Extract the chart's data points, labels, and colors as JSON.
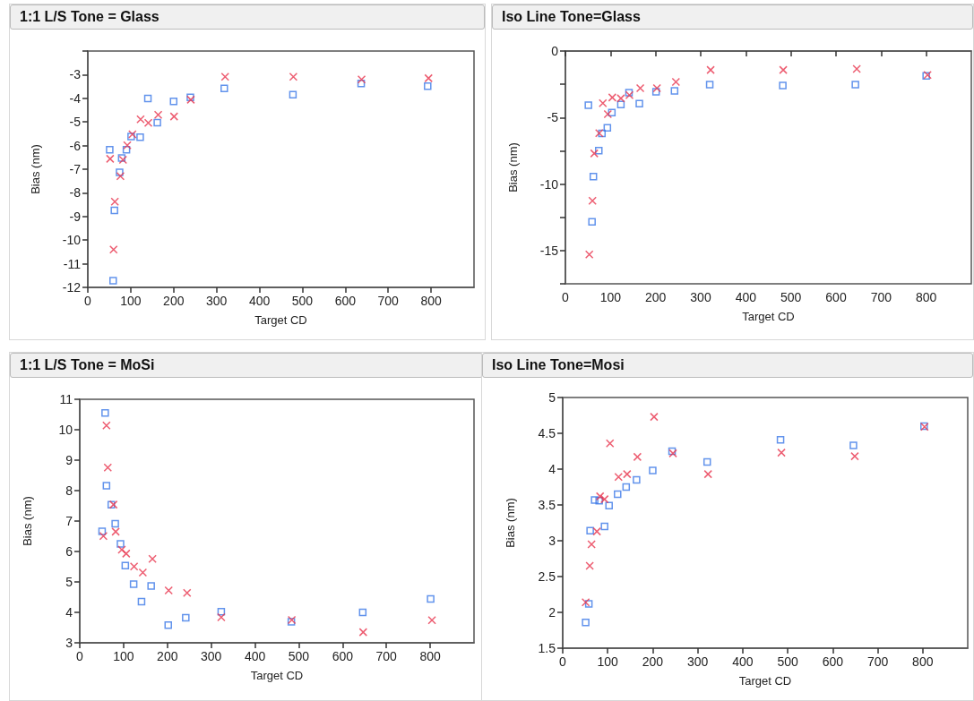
{
  "chart_data": [
    {
      "type": "scatter",
      "title": "1:1 L/S Tone = Glass",
      "xlabel": "Target CD",
      "ylabel": "Bias (nm)",
      "xlim": [
        0,
        900
      ],
      "xticks": [
        0,
        100,
        200,
        300,
        400,
        500,
        600,
        700,
        800
      ],
      "ylim": [
        -12,
        -2
      ],
      "yticks": [
        -12,
        -11,
        -10,
        -9,
        -8,
        -7,
        -6,
        -5,
        -4,
        -3,
        {
          "value": -2,
          "label": null
        }
      ],
      "grid": false,
      "series": [
        {
          "color": "#3b78e7",
          "marker": "square",
          "x": [
            51,
            59,
            62,
            74,
            79,
            90,
            101,
            122,
            140,
            162,
            200,
            239,
            318,
            478,
            637,
            792
          ],
          "values": [
            -6.18,
            -11.72,
            -8.74,
            -7.13,
            -6.53,
            -6.18,
            -5.62,
            -5.65,
            -4.01,
            -5.03,
            -4.13,
            -3.96,
            -3.58,
            -3.85,
            -3.37,
            -3.49
          ]
        },
        {
          "color": "#e8344e",
          "marker": "cross",
          "x": [
            52,
            60,
            63,
            76,
            82,
            92,
            104,
            123,
            141,
            164,
            201,
            240,
            320,
            479,
            638,
            794
          ],
          "values": [
            -6.56,
            -10.4,
            -8.37,
            -7.29,
            -6.6,
            -5.99,
            -5.52,
            -4.89,
            -5.04,
            -4.7,
            -4.77,
            -4.06,
            -3.09,
            -3.09,
            -3.2,
            -3.15
          ]
        }
      ]
    },
    {
      "type": "scatter",
      "title": "Iso Line Tone=Glass",
      "xlabel": "Target CD",
      "ylabel": "Bias (nm)",
      "xlim": [
        0,
        900
      ],
      "xticks": [
        0,
        100,
        200,
        300,
        400,
        500,
        600,
        700,
        800
      ],
      "ylim": [
        -17.5,
        0
      ],
      "yticks": [
        {
          "value": -17.5,
          "label": null
        },
        -15,
        {
          "value": -12.5,
          "label": null
        },
        -10,
        {
          "value": -7.5,
          "label": null
        },
        -5,
        {
          "value": -2.5,
          "label": null
        },
        0
      ],
      "grid": false,
      "series": [
        {
          "color": "#3b78e7",
          "marker": "square",
          "x": [
            51,
            59,
            62,
            74,
            81,
            93,
            103,
            123,
            141,
            164,
            201,
            242,
            320,
            482,
            643,
            800
          ],
          "values": [
            -4.08,
            -12.84,
            -9.44,
            -7.48,
            -6.19,
            -5.77,
            -4.62,
            -4.03,
            -3.13,
            -3.96,
            -3.06,
            -3.0,
            -2.52,
            -2.59,
            -2.52,
            -1.87
          ]
        },
        {
          "color": "#e8344e",
          "marker": "cross",
          "x": [
            53,
            60,
            64,
            75,
            83,
            94,
            104,
            123,
            142,
            166,
            203,
            245,
            322,
            483,
            646,
            803
          ],
          "values": [
            -15.29,
            -11.26,
            -7.7,
            -6.17,
            -3.92,
            -4.75,
            -3.49,
            -3.56,
            -3.31,
            -2.79,
            -2.79,
            -2.32,
            -1.42,
            -1.42,
            -1.35,
            -1.8
          ]
        }
      ]
    },
    {
      "type": "scatter",
      "title": "1:1 L/S Tone = MoSi",
      "xlabel": "Target CD",
      "ylabel": "Bias (nm)",
      "xlim": [
        0,
        900
      ],
      "xticks": [
        0,
        100,
        200,
        300,
        400,
        500,
        600,
        700,
        800
      ],
      "ylim": [
        3,
        11
      ],
      "yticks": [
        3,
        4,
        5,
        6,
        7,
        8,
        9,
        10,
        11
      ],
      "grid": false,
      "series": [
        {
          "color": "#3b78e7",
          "marker": "square",
          "x": [
            51,
            58,
            61,
            72,
            81,
            93,
            104,
            123,
            141,
            163,
            202,
            242,
            323,
            483,
            646,
            801
          ],
          "values": [
            6.66,
            10.55,
            8.16,
            7.54,
            6.91,
            6.25,
            5.54,
            4.93,
            4.35,
            4.87,
            3.58,
            3.82,
            4.02,
            3.69,
            4.0,
            4.44
          ]
        },
        {
          "color": "#e8344e",
          "marker": "cross",
          "x": [
            54,
            61,
            64,
            77,
            82,
            96,
            106,
            124,
            144,
            166,
            203,
            245,
            323,
            484,
            647,
            804
          ],
          "values": [
            6.51,
            10.14,
            8.76,
            7.54,
            6.65,
            6.06,
            5.93,
            5.51,
            5.31,
            5.76,
            4.72,
            4.64,
            3.84,
            3.75,
            3.35,
            3.74
          ]
        }
      ]
    },
    {
      "type": "scatter",
      "title": "Iso Line Tone=Mosi",
      "xlabel": "Target CD",
      "ylabel": "Bias (nm)",
      "xlim": [
        0,
        900
      ],
      "xticks": [
        0,
        100,
        200,
        300,
        400,
        500,
        600,
        700,
        800
      ],
      "ylim": [
        1.5,
        5
      ],
      "yticks": [
        1.5,
        2,
        2.5,
        3,
        3.5,
        4,
        4.5,
        5
      ],
      "grid": false,
      "series": [
        {
          "color": "#3b78e7",
          "marker": "square",
          "x": [
            51,
            58,
            61,
            71,
            81,
            93,
            103,
            122,
            141,
            164,
            200,
            243,
            321,
            484,
            646,
            803
          ],
          "values": [
            1.86,
            2.12,
            3.14,
            3.57,
            3.56,
            3.2,
            3.49,
            3.65,
            3.75,
            3.85,
            3.98,
            4.25,
            4.1,
            4.41,
            4.33,
            4.6
          ]
        },
        {
          "color": "#e8344e",
          "marker": "cross",
          "x": [
            51,
            60,
            64,
            76,
            83,
            93,
            105,
            124,
            143,
            166,
            203,
            245,
            323,
            486,
            649,
            804
          ],
          "values": [
            2.14,
            2.65,
            2.95,
            3.13,
            3.62,
            3.58,
            4.36,
            3.89,
            3.93,
            4.17,
            4.73,
            4.22,
            3.93,
            4.23,
            4.18,
            4.59
          ]
        }
      ]
    }
  ]
}
